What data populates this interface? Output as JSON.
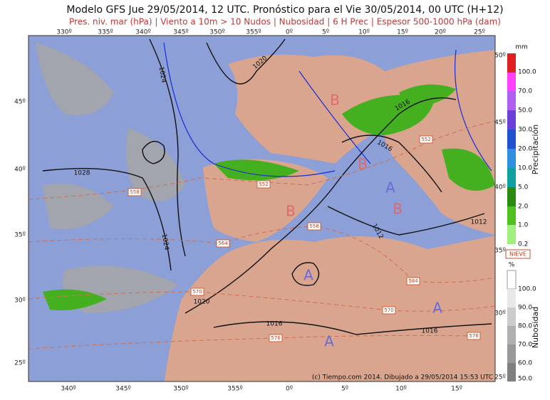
{
  "header": {
    "title": "Modelo GFS Jue 29/05/2014, 12 UTC. Pronóstico para el Vie 30/05/2014, 00 UTC (H+12)",
    "subtitle": "Pres. niv. mar (hPa) | Viento a 10m > 10 Nudos | Nubosidad | 6 H Prec | Espesor 500-1000 hPa (dam)"
  },
  "map": {
    "lon_top": [
      "330º",
      "335º",
      "340º",
      "345º",
      "350º",
      "355º",
      "0º",
      "5º",
      "10º",
      "15º",
      "20º",
      "25º"
    ],
    "lon_bottom": [
      "340º",
      "345º",
      "350º",
      "355º",
      "0º",
      "5º",
      "10º",
      "15º"
    ],
    "lat_left": [
      "45º",
      "40º",
      "35º",
      "30º",
      "25º"
    ],
    "lat_right": [
      "50º",
      "45º",
      "40º",
      "35º",
      "30º",
      "25º"
    ],
    "isobars": [
      "1024",
      "1028",
      "1024",
      "1020",
      "1020",
      "1016",
      "1016",
      "1016",
      "1016",
      "1012",
      "1012"
    ],
    "thickness": [
      "558",
      "552",
      "552",
      "558",
      "564",
      "570",
      "570",
      "576",
      "576",
      "584"
    ],
    "centers": [
      "B",
      "B",
      "B",
      "B",
      "A",
      "A",
      "A",
      "A"
    ],
    "credit": "(c) Tiempo.com 2014. Dibujado a 29/05/2014 15:53 UTC"
  },
  "legend": {
    "precip_unit": "mm",
    "precip_levels": [
      "100.0",
      "70.0",
      "50.0",
      "30.0",
      "20.0",
      "10.0",
      "5.0",
      "2.0",
      "1.0",
      "0.2"
    ],
    "precip_title": "Precipitación",
    "snow": "NIEVE",
    "cloud_unit": "%",
    "cloud_levels": [
      "100.0",
      "90.0",
      "80.0",
      "70.0",
      "60.0",
      "50.0"
    ],
    "cloud_title": "Nubosidad"
  }
}
